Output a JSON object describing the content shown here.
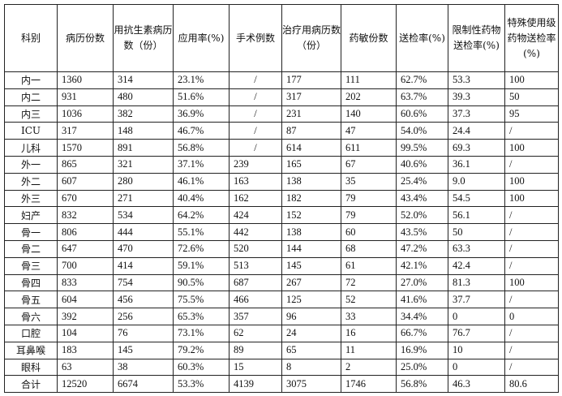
{
  "headers": [
    "科别",
    "病历份数",
    "用抗生素病历　数（份）",
    "应用率(%)",
    "手术例数",
    "治疗用病历数（份）",
    "药敏份数",
    "送检率(%)",
    "限制性药物送检率(%)",
    "特殊使用级药物送检率(%)"
  ],
  "rows": [
    [
      "内一",
      "1360",
      "314",
      "23.1%",
      "/",
      "177",
      "111",
      "62.7%",
      "53.3",
      "100"
    ],
    [
      "内二",
      "931",
      "480",
      "51.6%",
      "/",
      "317",
      "202",
      "63.7%",
      "39.3",
      "50"
    ],
    [
      "内三",
      "1036",
      "382",
      "36.9%",
      "/",
      "231",
      "140",
      "60.6%",
      "37.3",
      "95"
    ],
    [
      "ICU",
      "317",
      "148",
      "46.7%",
      "/",
      "87",
      "47",
      "54.0%",
      "24.4",
      "/"
    ],
    [
      "儿科",
      "1570",
      "891",
      "56.8%",
      "/",
      "614",
      "611",
      "99.5%",
      "69.3",
      "100"
    ],
    [
      "外一",
      "865",
      "321",
      "37.1%",
      "239",
      "165",
      "67",
      "40.6%",
      "36.1",
      "/"
    ],
    [
      "外二",
      "607",
      "280",
      "46.1%",
      "163",
      "138",
      "35",
      "25.4%",
      "9.0",
      "100"
    ],
    [
      "外三",
      "670",
      "271",
      "40.4%",
      "162",
      "182",
      "79",
      "43.4%",
      "54.5",
      "100"
    ],
    [
      "妇产",
      "832",
      "534",
      "64.2%",
      "424",
      "152",
      "79",
      "52.0%",
      "56.1",
      "/"
    ],
    [
      "骨一",
      "806",
      "444",
      "55.1%",
      "442",
      "138",
      "60",
      "43.5%",
      "50",
      "/"
    ],
    [
      "骨二",
      "647",
      "470",
      "72.6%",
      "520",
      "144",
      "68",
      "47.2%",
      "63.3",
      "/"
    ],
    [
      "骨三",
      "700",
      "414",
      "59.1%",
      "513",
      "145",
      "61",
      "42.1%",
      "42.4",
      "/"
    ],
    [
      "骨四",
      "833",
      "754",
      "90.5%",
      "687",
      "267",
      "72",
      "27.0%",
      "81.3",
      "100"
    ],
    [
      "骨五",
      "604",
      "456",
      "75.5%",
      "466",
      "125",
      "52",
      "41.6%",
      "37.7",
      "/"
    ],
    [
      "骨六",
      "392",
      "256",
      "65.3%",
      "357",
      "96",
      "33",
      "34.4%",
      "0",
      "0"
    ],
    [
      "口腔",
      "104",
      "76",
      "73.1%",
      "62",
      "24",
      "16",
      "66.7%",
      "76.7",
      "/"
    ],
    [
      "耳鼻喉",
      "183",
      "145",
      "79.2%",
      "89",
      "65",
      "11",
      "16.9%",
      "10",
      "/"
    ],
    [
      "眼科",
      "63",
      "38",
      "60.3%",
      "15",
      "8",
      "2",
      "25.0%",
      "0",
      "/"
    ],
    [
      "合计",
      "12520",
      "6674",
      "53.3%",
      "4139",
      "3075",
      "1746",
      "56.8%",
      "46.3",
      "80.6"
    ]
  ]
}
